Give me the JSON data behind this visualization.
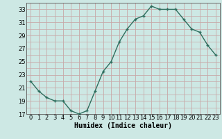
{
  "x": [
    0,
    1,
    2,
    3,
    4,
    5,
    6,
    7,
    8,
    9,
    10,
    11,
    12,
    13,
    14,
    15,
    16,
    17,
    18,
    19,
    20,
    21,
    22,
    23
  ],
  "y": [
    22,
    20.5,
    19.5,
    19,
    19,
    17.5,
    17,
    17.5,
    20.5,
    23.5,
    25,
    28,
    30,
    31.5,
    32,
    33.5,
    33,
    33,
    33,
    31.5,
    30,
    29.5,
    27.5,
    26
  ],
  "line_color": "#2e6e5e",
  "marker": "+",
  "bg_color": "#cde8e4",
  "grid_color": "#c8a8a8",
  "xlabel": "Humidex (Indice chaleur)",
  "ylim": [
    17,
    34
  ],
  "yticks": [
    17,
    19,
    21,
    23,
    25,
    27,
    29,
    31,
    33
  ],
  "xlim": [
    -0.5,
    23.5
  ],
  "xticks": [
    0,
    1,
    2,
    3,
    4,
    5,
    6,
    7,
    8,
    9,
    10,
    11,
    12,
    13,
    14,
    15,
    16,
    17,
    18,
    19,
    20,
    21,
    22,
    23
  ],
  "xlabel_fontsize": 7,
  "tick_fontsize": 6,
  "linewidth": 1.0,
  "markersize": 3.5,
  "markeredgewidth": 1.0
}
